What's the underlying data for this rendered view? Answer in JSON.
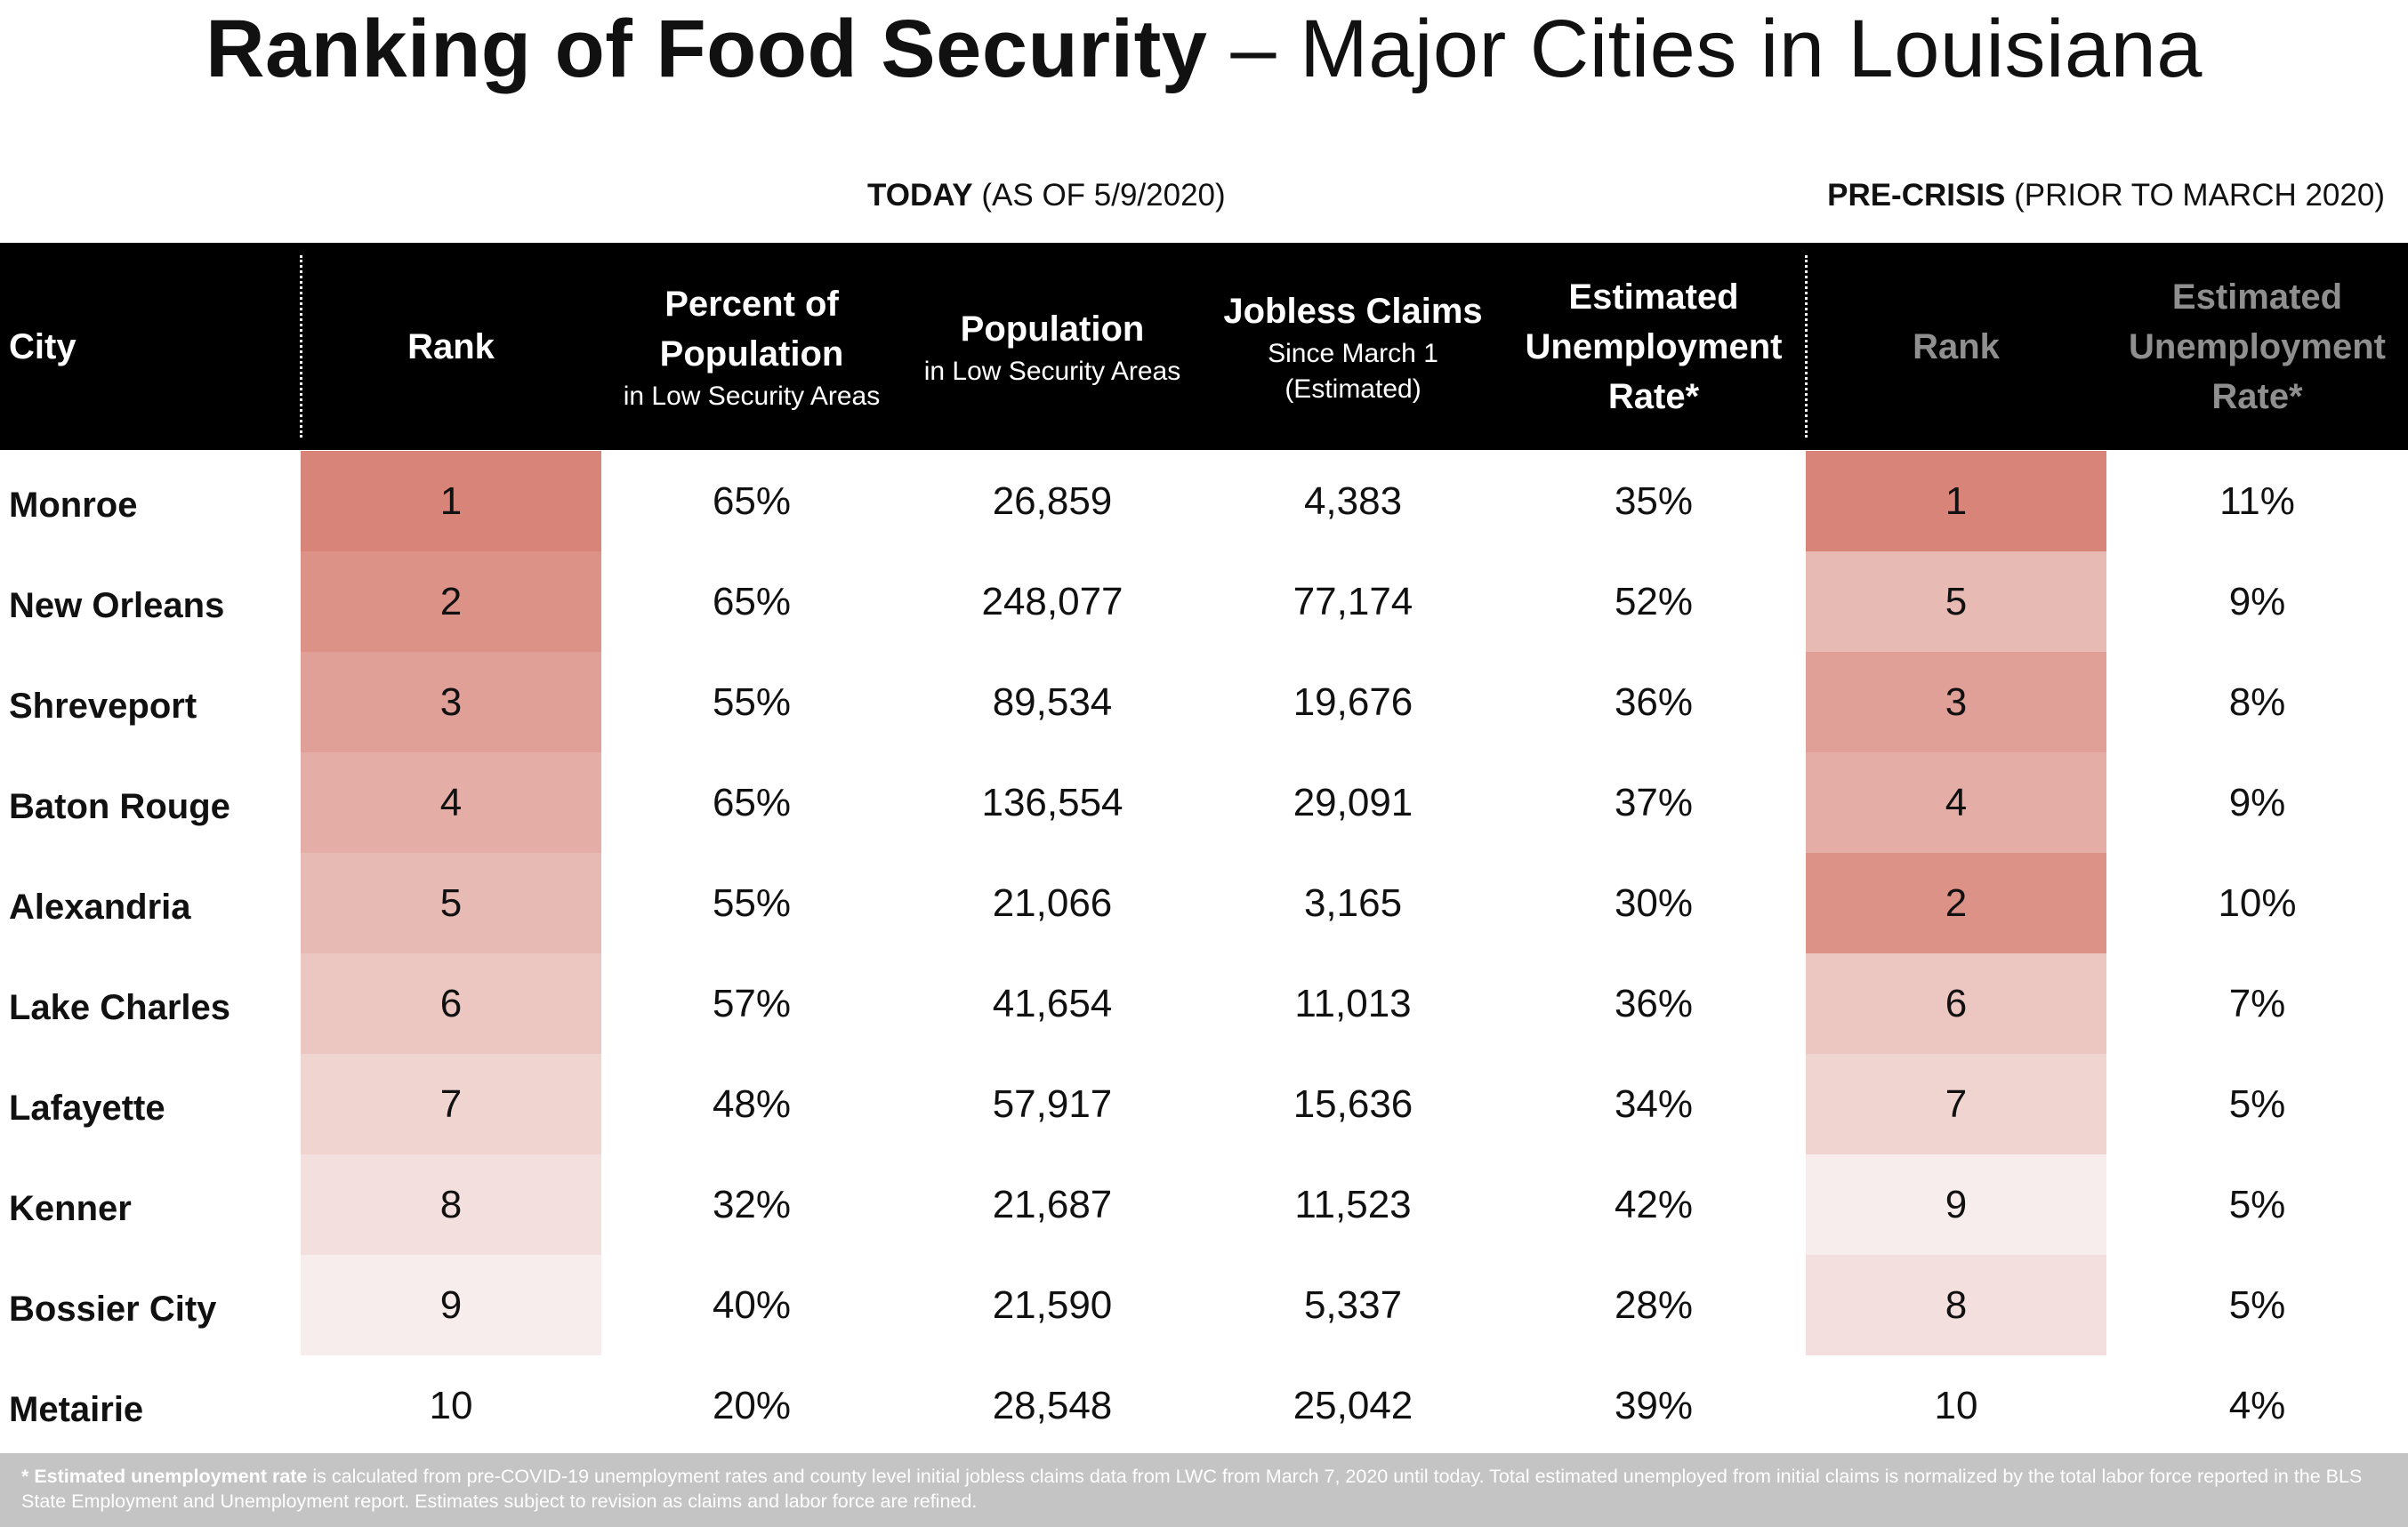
{
  "title": {
    "bold": "Ranking of Food Security",
    "rest": " – Major Cities in Louisiana"
  },
  "sections": {
    "today": {
      "bold": "TODAY",
      "rest": " (AS OF 5/9/2020)"
    },
    "precrisis": {
      "bold": "PRE-CRISIS",
      "rest": " (PRIOR TO MARCH 2020)"
    }
  },
  "headers": {
    "city": "City",
    "rank": "Rank",
    "pct_main_1": "Percent of",
    "pct_main_2": "Population",
    "pct_sub": "in Low Security Areas",
    "pop_main": "Population",
    "pop_sub": "in Low Security Areas",
    "jobless_main": "Jobless Claims",
    "jobless_sub_1": "Since March 1",
    "jobless_sub_2": "(Estimated)",
    "unemp_1": "Estimated",
    "unemp_2": "Unemployment",
    "unemp_3": "Rate*",
    "pre_rank": "Rank",
    "pre_unemp_1": "Estimated",
    "pre_unemp_2": "Unemployment",
    "pre_unemp_3": "Rate*"
  },
  "colors": {
    "header_bg": "#000000",
    "shade_1": "#d98479",
    "shade_2": "#dd9288",
    "shade_3": "#e0a098",
    "shade_4": "#e4ada6",
    "shade_5": "#e8bab4",
    "shade_6": "#ecc7c2",
    "shade_7": "#f0d4d0",
    "shade_8": "#f3e0de",
    "shade_9": "#f7edec",
    "footer_bg": "#c4c4c4"
  },
  "rows": [
    {
      "city": "Monroe",
      "rank": "1",
      "pct": "65%",
      "pop": "26,859",
      "jobless": "4,383",
      "unemp": "35%",
      "pre_rank": "1",
      "pre_unemp": "11%"
    },
    {
      "city": "New Orleans",
      "rank": "2",
      "pct": "65%",
      "pop": "248,077",
      "jobless": "77,174",
      "unemp": "52%",
      "pre_rank": "5",
      "pre_unemp": "9%"
    },
    {
      "city": "Shreveport",
      "rank": "3",
      "pct": "55%",
      "pop": "89,534",
      "jobless": "19,676",
      "unemp": "36%",
      "pre_rank": "3",
      "pre_unemp": "8%"
    },
    {
      "city": "Baton Rouge",
      "rank": "4",
      "pct": "65%",
      "pop": "136,554",
      "jobless": "29,091",
      "unemp": "37%",
      "pre_rank": "4",
      "pre_unemp": "9%"
    },
    {
      "city": "Alexandria",
      "rank": "5",
      "pct": "55%",
      "pop": "21,066",
      "jobless": "3,165",
      "unemp": "30%",
      "pre_rank": "2",
      "pre_unemp": "10%"
    },
    {
      "city": "Lake Charles",
      "rank": "6",
      "pct": "57%",
      "pop": "41,654",
      "jobless": "11,013",
      "unemp": "36%",
      "pre_rank": "6",
      "pre_unemp": "7%"
    },
    {
      "city": "Lafayette",
      "rank": "7",
      "pct": "48%",
      "pop": "57,917",
      "jobless": "15,636",
      "unemp": "34%",
      "pre_rank": "7",
      "pre_unemp": "5%"
    },
    {
      "city": "Kenner",
      "rank": "8",
      "pct": "32%",
      "pop": "21,687",
      "jobless": "11,523",
      "unemp": "42%",
      "pre_rank": "9",
      "pre_unemp": "5%"
    },
    {
      "city": "Bossier City",
      "rank": "9",
      "pct": "40%",
      "pop": "21,590",
      "jobless": "5,337",
      "unemp": "28%",
      "pre_rank": "8",
      "pre_unemp": "5%"
    },
    {
      "city": "Metairie",
      "rank": "10",
      "pct": "20%",
      "pop": "28,548",
      "jobless": "25,042",
      "unemp": "39%",
      "pre_rank": "10",
      "pre_unemp": "4%"
    }
  ],
  "footnote": {
    "bold": "* Estimated unemployment rate",
    "rest": " is calculated from pre-COVID-19 unemployment rates and county level initial jobless claims data from LWC from March 7, 2020 until today. Total estimated unemployed from initial claims is normalized by the total labor force reported in the BLS State Employment and Unemployment report. Estimates subject to revision as claims and labor force are refined."
  }
}
